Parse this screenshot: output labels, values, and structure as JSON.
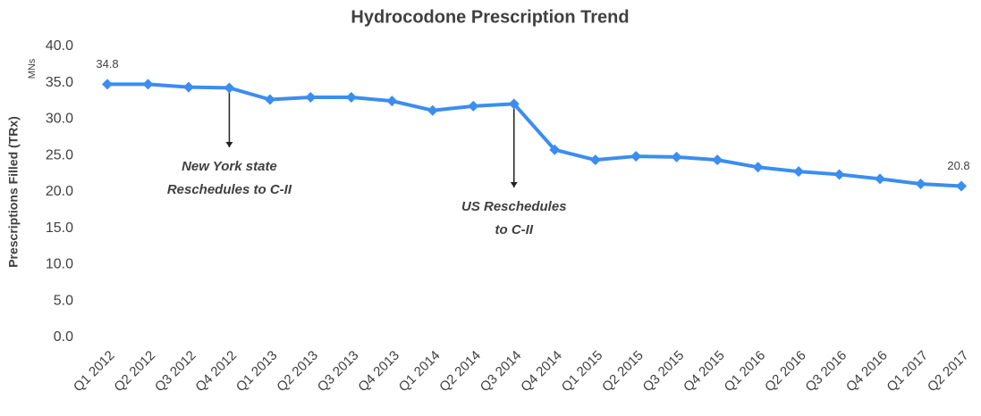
{
  "chart_data": {
    "type": "line",
    "title": "Hydrocodone Prescription Trend",
    "ylabel": "Prescriptions Filled (TRx)",
    "yunit": "MNs",
    "categories": [
      "Q1 2012",
      "Q2 2012",
      "Q3 2012",
      "Q4 2012",
      "Q1 2013",
      "Q2 2013",
      "Q3 2013",
      "Q4 2013",
      "Q1 2014",
      "Q2 2014",
      "Q3 2014",
      "Q4 2014",
      "Q1 2015",
      "Q2 2015",
      "Q3 2015",
      "Q4 2015",
      "Q1 2016",
      "Q2 2016",
      "Q3 2016",
      "Q4 2016",
      "Q1 2017",
      "Q2 2017"
    ],
    "values": [
      34.8,
      34.8,
      34.4,
      34.3,
      32.7,
      33.0,
      33.0,
      32.5,
      31.2,
      31.8,
      32.1,
      25.8,
      24.4,
      24.9,
      24.8,
      24.4,
      23.4,
      22.8,
      22.4,
      21.8,
      21.1,
      20.8
    ],
    "color": "#3b8df0",
    "data_labels": "first-last",
    "ylim": [
      0,
      40
    ],
    "yticks": [
      {
        "value": 0,
        "label": "0.0"
      },
      {
        "value": 5,
        "label": "5.0"
      },
      {
        "value": 10,
        "label": "10.0"
      },
      {
        "value": 15,
        "label": "15.0"
      },
      {
        "value": 20,
        "label": "20.0"
      },
      {
        "value": 25,
        "label": "25.0"
      },
      {
        "value": 30,
        "label": "30.0"
      },
      {
        "value": 35,
        "label": "35.0"
      },
      {
        "value": 40,
        "label": "40.0"
      }
    ],
    "grid": false,
    "annotations": [
      {
        "category": "Q4 2012",
        "lines": [
          "New York state",
          "Reschedules to C-II"
        ]
      },
      {
        "category": "Q3 2014",
        "lines": [
          "US Reschedules",
          "to C-II"
        ]
      }
    ]
  }
}
